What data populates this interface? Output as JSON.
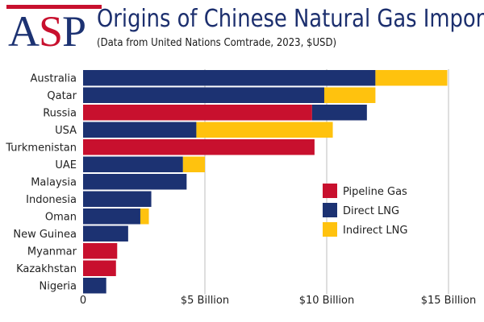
{
  "branding": {
    "logo_text": "ASP"
  },
  "colors": {
    "pipeline": "#c8102e",
    "direct_lng": "#1c3272",
    "indirect_lng": "#ffc20e",
    "grid": "#bdbdbd"
  },
  "chart_data": {
    "type": "bar",
    "orientation": "horizontal",
    "stacked": true,
    "title": "Origins of Chinese Natural Gas Imports",
    "subtitle": "(Data from United Nations Comtrade, 2023, $USD)",
    "xlabel": "",
    "ylabel": "",
    "xlim": [
      0,
      15
    ],
    "units": "Billion USD",
    "ticks": [
      {
        "value": 0,
        "label": "0"
      },
      {
        "value": 5,
        "label": "$5 Billion"
      },
      {
        "value": 10,
        "label": "$10 Billion"
      },
      {
        "value": 15,
        "label": "$15 Billion"
      }
    ],
    "grid": true,
    "legend_position": "right",
    "categories": [
      "Australia",
      "Qatar",
      "Russia",
      "USA",
      "Turkmenistan",
      "UAE",
      "Malaysia",
      "Indonesia",
      "Oman",
      "New Guinea",
      "Myanmar",
      "Kazakhstan",
      "Nigeria"
    ],
    "series": [
      {
        "name": "Pipeline Gas",
        "color_key": "pipeline",
        "values": [
          0,
          0,
          9.4,
          0,
          9.5,
          0,
          0,
          0,
          0,
          0,
          1.4,
          1.35,
          0
        ]
      },
      {
        "name": "Direct LNG",
        "color_key": "direct_lng",
        "values": [
          12.0,
          9.9,
          2.25,
          4.65,
          0,
          4.1,
          4.25,
          2.8,
          2.35,
          1.85,
          0,
          0,
          0.95
        ]
      },
      {
        "name": "Indirect LNG",
        "color_key": "indirect_lng",
        "values": [
          2.95,
          2.1,
          0,
          5.6,
          0,
          0.9,
          0,
          0,
          0.35,
          0,
          0,
          0,
          0
        ]
      }
    ],
    "legend": [
      "Pipeline Gas",
      "Direct LNG",
      "Indirect LNG"
    ]
  }
}
